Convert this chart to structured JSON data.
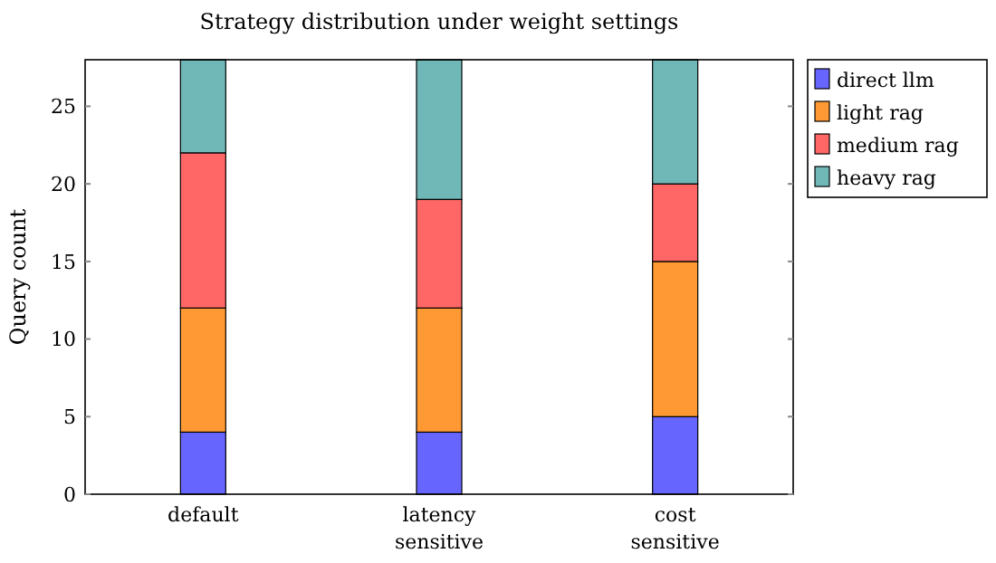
{
  "chart_data": {
    "type": "bar",
    "title": "Strategy distribution under weight settings",
    "ylabel": "Query count",
    "categories": [
      "default",
      "latency sensitive",
      "cost sensitive"
    ],
    "stacked": true,
    "ylim": [
      0,
      28
    ],
    "yticks": [
      0,
      5,
      10,
      15,
      20,
      25
    ],
    "legend": "right",
    "grid": false,
    "series": [
      {
        "name": "direct llm",
        "color": "#6666ff",
        "values": [
          4,
          4,
          5
        ]
      },
      {
        "name": "light rag",
        "color": "#ff9933",
        "values": [
          8,
          8,
          10
        ]
      },
      {
        "name": "medium rag",
        "color": "#ff6666",
        "values": [
          10,
          7,
          5
        ]
      },
      {
        "name": "heavy rag",
        "color": "#70b8b8",
        "values": [
          6,
          9,
          8
        ]
      }
    ]
  }
}
